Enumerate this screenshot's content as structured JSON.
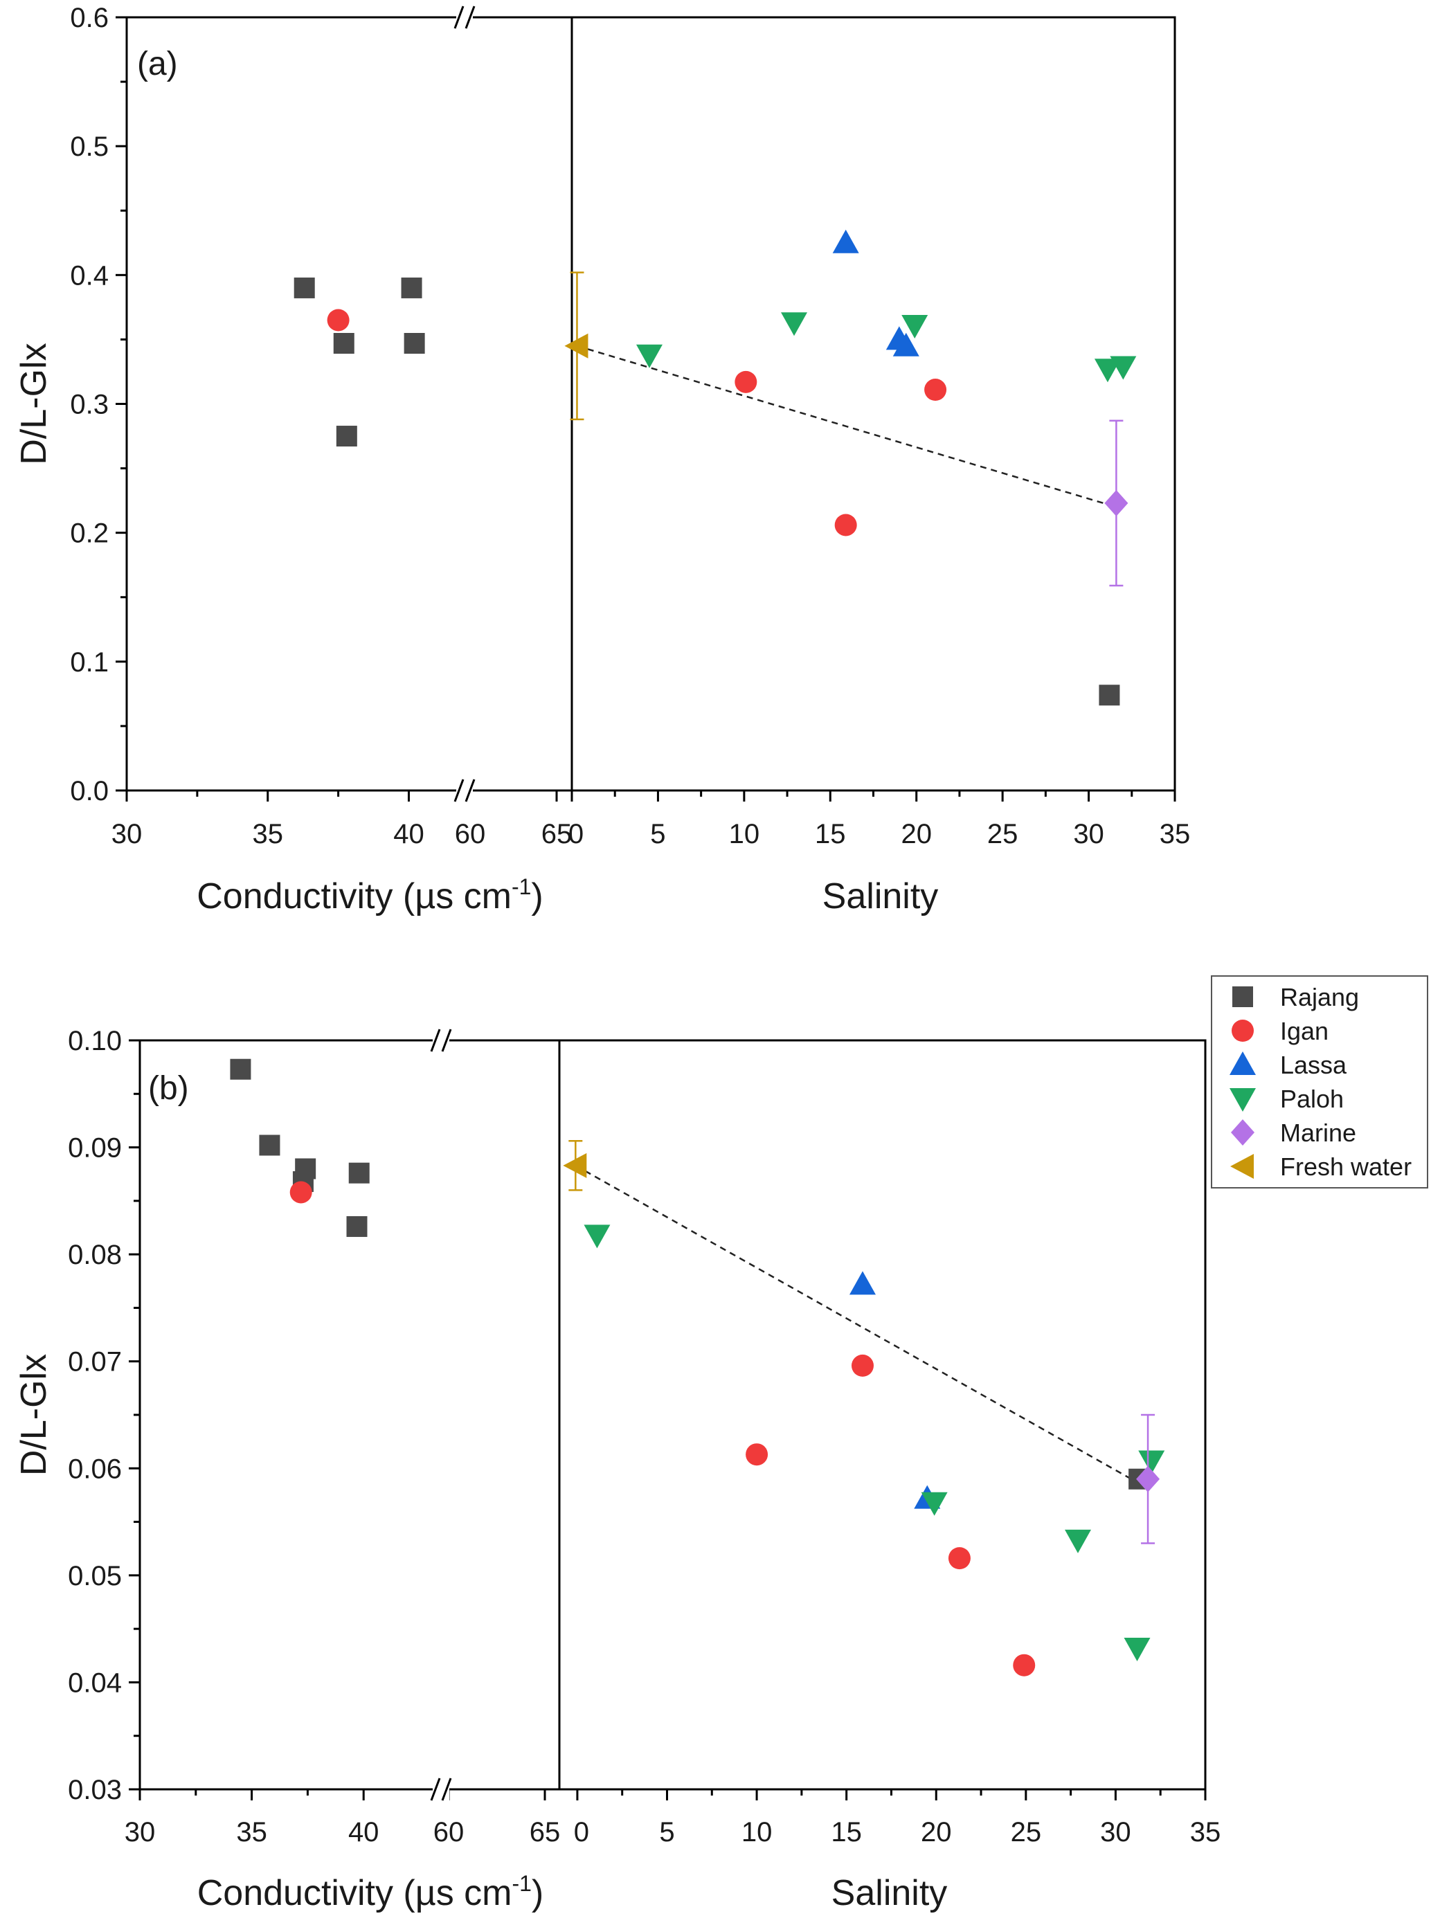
{
  "legend": {
    "entries": [
      {
        "name": "Rajang",
        "marker": "square",
        "color": "#4a4a4a"
      },
      {
        "name": "Igan",
        "marker": "circle",
        "color": "#f03a3a"
      },
      {
        "name": "Lassa",
        "marker": "triangle-up",
        "color": "#1565d8"
      },
      {
        "name": "Paloh",
        "marker": "triangle-down",
        "color": "#1fa860"
      },
      {
        "name": "Marine",
        "marker": "diamond",
        "color": "#b472e6"
      },
      {
        "name": "Fresh water",
        "marker": "triangle-left",
        "color": "#c9970a"
      }
    ]
  },
  "chart_data": [
    {
      "type": "scatter",
      "panel_label": "(a)",
      "ylabel": "D/L-Glx",
      "ylim": [
        0.0,
        0.6
      ],
      "yticks": [
        "0.0",
        "0.1",
        "0.2",
        "0.3",
        "0.4",
        "0.5",
        "0.6"
      ],
      "ytick_values": [
        0.0,
        0.1,
        0.2,
        0.3,
        0.4,
        0.5,
        0.6
      ],
      "left": {
        "xlabel": "Conductivity (µs cm",
        "xlabel_sup": "-1",
        "xlabel_close": ")",
        "xlim": [
          30,
          40.7
        ],
        "xticks": [
          "30",
          "35",
          "40"
        ],
        "xtick_values": [
          30,
          35,
          40
        ],
        "break_ticks": [
          "60",
          "65"
        ],
        "series": [
          {
            "name": "Rajang",
            "points": [
              [
                36.3,
                0.39
              ],
              [
                37.7,
                0.347
              ],
              [
                37.8,
                0.275
              ],
              [
                40.1,
                0.39
              ],
              [
                40.2,
                0.347
              ]
            ]
          },
          {
            "name": "Igan",
            "points": [
              [
                37.5,
                0.365
              ]
            ]
          }
        ]
      },
      "right": {
        "xlabel": "Salinity",
        "xlim": [
          0,
          35
        ],
        "xticks": [
          "0",
          "5",
          "10",
          "15",
          "20",
          "25",
          "30",
          "35"
        ],
        "xtick_values": [
          0,
          5,
          10,
          15,
          20,
          25,
          30,
          35
        ],
        "series": [
          {
            "name": "Rajang",
            "points": [
              [
                31.2,
                0.074
              ]
            ]
          },
          {
            "name": "Igan",
            "points": [
              [
                10.1,
                0.317
              ],
              [
                15.9,
                0.206
              ],
              [
                21.1,
                0.311
              ]
            ]
          },
          {
            "name": "Lassa",
            "points": [
              [
                15.9,
                0.425
              ],
              [
                19,
                0.35
              ],
              [
                19.4,
                0.345
              ]
            ]
          },
          {
            "name": "Paloh",
            "points": [
              [
                4.5,
                0.338
              ],
              [
                12.9,
                0.363
              ],
              [
                19.9,
                0.361
              ],
              [
                31.1,
                0.327
              ],
              [
                32.0,
                0.329
              ]
            ]
          },
          {
            "name": "Marine",
            "points": [
              [
                31.6,
                0.223
              ]
            ],
            "error": [
              0.064
            ]
          },
          {
            "name": "Fresh water",
            "points": [
              [
                0.3,
                0.345
              ]
            ],
            "error": [
              0.057
            ]
          }
        ],
        "trendline": {
          "from": [
            0.3,
            0.345
          ],
          "to": [
            31.6,
            0.22
          ]
        }
      }
    },
    {
      "type": "scatter",
      "panel_label": "(b)",
      "ylabel": "D/L-Glx",
      "ylim": [
        0.03,
        0.1
      ],
      "yticks": [
        "0.03",
        "0.04",
        "0.05",
        "0.06",
        "0.07",
        "0.08",
        "0.09",
        "0.10"
      ],
      "ytick_values": [
        0.03,
        0.04,
        0.05,
        0.06,
        0.07,
        0.08,
        0.09,
        0.1
      ],
      "left": {
        "xlabel": "Conductivity (µs cm",
        "xlabel_sup": "-1",
        "xlabel_close": ")",
        "xlim": [
          30,
          42.5
        ],
        "xticks": [
          "30",
          "35",
          "40"
        ],
        "xtick_values": [
          30,
          35,
          40
        ],
        "break_ticks": [
          "60",
          "65"
        ],
        "series": [
          {
            "name": "Rajang",
            "points": [
              [
                34.5,
                0.0973
              ],
              [
                35.8,
                0.0902
              ],
              [
                37.3,
                0.0868
              ],
              [
                37.4,
                0.088
              ],
              [
                39.8,
                0.0876
              ],
              [
                39.7,
                0.0826
              ]
            ]
          },
          {
            "name": "Igan",
            "points": [
              [
                37.2,
                0.0858
              ]
            ]
          }
        ]
      },
      "right": {
        "xlabel": "Salinity",
        "xlim": [
          -1,
          35
        ],
        "xticks": [
          "0",
          "5",
          "10",
          "15",
          "20",
          "25",
          "30",
          "35"
        ],
        "xtick_values": [
          0,
          5,
          10,
          15,
          20,
          25,
          30,
          35
        ],
        "series": [
          {
            "name": "Rajang",
            "points": [
              [
                31.3,
                0.059
              ]
            ]
          },
          {
            "name": "Igan",
            "points": [
              [
                10.0,
                0.0613
              ],
              [
                15.9,
                0.0696
              ],
              [
                21.3,
                0.0516
              ],
              [
                24.9,
                0.0416
              ]
            ]
          },
          {
            "name": "Lassa",
            "points": [
              [
                15.9,
                0.0772
              ],
              [
                19.5,
                0.0572
              ]
            ]
          },
          {
            "name": "Paloh",
            "points": [
              [
                1.1,
                0.0818
              ],
              [
                19.9,
                0.0568
              ],
              [
                27.9,
                0.0533
              ],
              [
                31.2,
                0.0432
              ],
              [
                32.0,
                0.0607
              ]
            ]
          },
          {
            "name": "Marine",
            "points": [
              [
                31.8,
                0.059
              ]
            ],
            "error": [
              0.006
            ]
          },
          {
            "name": "Fresh water",
            "points": [
              [
                -0.1,
                0.0883
              ]
            ],
            "error": [
              0.0023
            ]
          }
        ],
        "trendline": {
          "from": [
            -0.1,
            0.0883
          ],
          "to": [
            31.3,
            0.0586
          ]
        }
      }
    }
  ]
}
